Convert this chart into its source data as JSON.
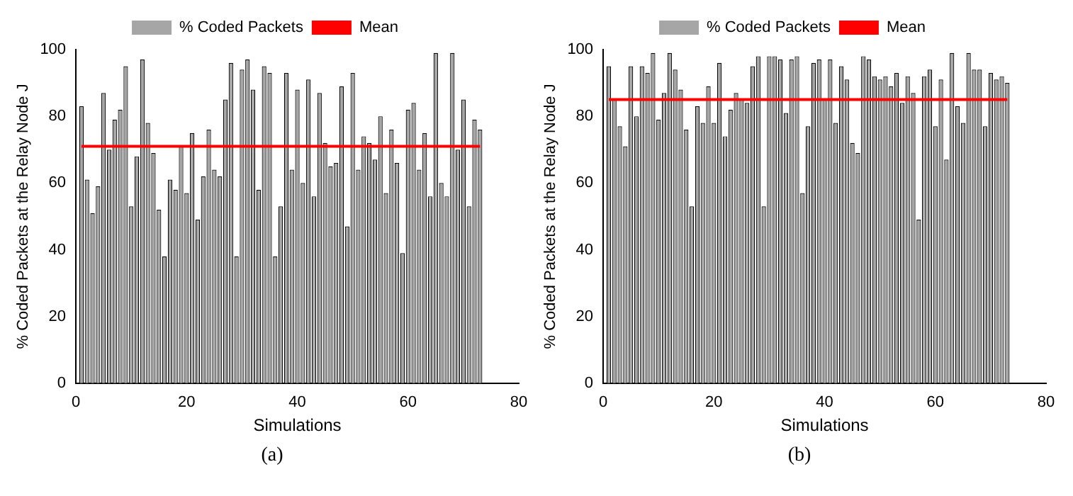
{
  "chart_data": [
    {
      "type": "bar",
      "xlabel": "Simulations",
      "ylabel": "% Coded Packets at the Relay Node J",
      "annotations": [
        "(a)"
      ],
      "xlim": [
        0,
        80
      ],
      "xticks": [
        0,
        20,
        40,
        60,
        80
      ],
      "ylim": [
        0,
        100
      ],
      "yticks": [
        0,
        20,
        40,
        60,
        80,
        100
      ],
      "grid": false,
      "legend": "top",
      "series": [
        {
          "name": "% Coded Packets",
          "color": "#a6a6a6",
          "x": [
            1,
            2,
            3,
            4,
            5,
            6,
            7,
            8,
            9,
            10,
            11,
            12,
            13,
            14,
            15,
            16,
            17,
            18,
            19,
            20,
            21,
            22,
            23,
            24,
            25,
            26,
            27,
            28,
            29,
            30,
            31,
            32,
            33,
            34,
            35,
            36,
            37,
            38,
            39,
            40,
            41,
            42,
            43,
            44,
            45,
            46,
            47,
            48,
            49,
            50,
            51,
            52,
            53,
            54,
            55,
            56,
            57,
            58,
            59,
            60,
            61,
            62,
            63,
            64,
            65,
            66,
            67,
            68,
            69,
            70,
            71,
            72,
            73
          ],
          "values": [
            83,
            61,
            51,
            59,
            87,
            70,
            79,
            82,
            95,
            53,
            68,
            97,
            78,
            69,
            52,
            38,
            61,
            58,
            71,
            57,
            75,
            49,
            62,
            76,
            64,
            62,
            85,
            96,
            38,
            94,
            97,
            88,
            58,
            95,
            93,
            38,
            53,
            93,
            64,
            88,
            60,
            91,
            56,
            87,
            72,
            65,
            66,
            89,
            47,
            93,
            64,
            74,
            72,
            67,
            80,
            57,
            76,
            66,
            39,
            82,
            84,
            64,
            75,
            56,
            99,
            60,
            56,
            99,
            70,
            85,
            53,
            79,
            76
          ]
        },
        {
          "name": "Mean",
          "type": "line",
          "color": "#ff0000",
          "x": [
            1,
            73
          ],
          "values": [
            71,
            71
          ]
        }
      ]
    },
    {
      "type": "bar",
      "xlabel": "Simulations",
      "ylabel": "% Coded Packets at the Relay Node J",
      "annotations": [
        "(b)"
      ],
      "xlim": [
        0,
        80
      ],
      "xticks": [
        0,
        20,
        40,
        60,
        80
      ],
      "ylim": [
        0,
        100
      ],
      "yticks": [
        0,
        20,
        40,
        60,
        80,
        100
      ],
      "grid": false,
      "legend": "top",
      "series": [
        {
          "name": "% Coded Packets",
          "color": "#a6a6a6",
          "x": [
            1,
            2,
            3,
            4,
            5,
            6,
            7,
            8,
            9,
            10,
            11,
            12,
            13,
            14,
            15,
            16,
            17,
            18,
            19,
            20,
            21,
            22,
            23,
            24,
            25,
            26,
            27,
            28,
            29,
            30,
            31,
            32,
            33,
            34,
            35,
            36,
            37,
            38,
            39,
            40,
            41,
            42,
            43,
            44,
            45,
            46,
            47,
            48,
            49,
            50,
            51,
            52,
            53,
            54,
            55,
            56,
            57,
            58,
            59,
            60,
            61,
            62,
            63,
            64,
            65,
            66,
            67,
            68,
            69,
            70,
            71,
            72,
            73
          ],
          "values": [
            95,
            85,
            77,
            71,
            95,
            80,
            95,
            93,
            99,
            79,
            87,
            99,
            94,
            88,
            76,
            53,
            83,
            78,
            89,
            78,
            96,
            74,
            82,
            87,
            85,
            84,
            95,
            98,
            53,
            98,
            98,
            97,
            81,
            97,
            98,
            57,
            77,
            96,
            97,
            85,
            97,
            78,
            95,
            91,
            72,
            69,
            98,
            97,
            92,
            91,
            92,
            89,
            93,
            84,
            92,
            87,
            49,
            92,
            94,
            77,
            91,
            67,
            99,
            83,
            78,
            99,
            94,
            94,
            77,
            93,
            91,
            92,
            90
          ]
        },
        {
          "name": "Mean",
          "type": "line",
          "color": "#ff0000",
          "x": [
            1,
            73
          ],
          "values": [
            85,
            85
          ]
        }
      ]
    }
  ]
}
